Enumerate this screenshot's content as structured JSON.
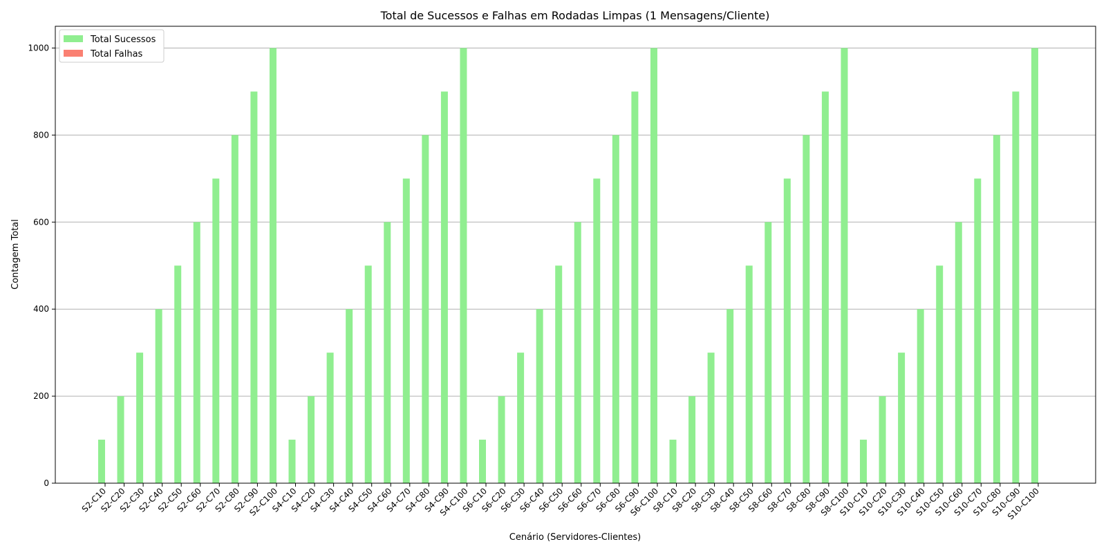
{
  "chart_data": {
    "type": "bar",
    "title": "Total de Sucessos e Falhas em Rodadas Limpas (1 Mensagens/Cliente)",
    "xlabel": "Cenário (Servidores-Clientes)",
    "ylabel": "Contagem Total",
    "ylim": [
      0,
      1050
    ],
    "yticks": [
      0,
      200,
      400,
      600,
      800,
      1000
    ],
    "grid": "y",
    "legend_position": "top-left",
    "categories": [
      "S2-C10",
      "S2-C20",
      "S2-C30",
      "S2-C40",
      "S2-C50",
      "S2-C60",
      "S2-C70",
      "S2-C80",
      "S2-C90",
      "S2-C100",
      "S4-C10",
      "S4-C20",
      "S4-C30",
      "S4-C40",
      "S4-C50",
      "S4-C60",
      "S4-C70",
      "S4-C80",
      "S4-C90",
      "S4-C100",
      "S6-C10",
      "S6-C20",
      "S6-C30",
      "S6-C40",
      "S6-C50",
      "S6-C60",
      "S6-C70",
      "S6-C80",
      "S6-C90",
      "S6-C100",
      "S8-C10",
      "S8-C20",
      "S8-C30",
      "S8-C40",
      "S8-C50",
      "S8-C60",
      "S8-C70",
      "S8-C80",
      "S8-C90",
      "S8-C100",
      "S10-C10",
      "S10-C20",
      "S10-C30",
      "S10-C40",
      "S10-C50",
      "S10-C60",
      "S10-C70",
      "S10-C80",
      "S10-C90",
      "S10-C100"
    ],
    "series": [
      {
        "name": "Total Sucessos",
        "color": "#90ee90",
        "values": [
          100,
          200,
          300,
          400,
          500,
          600,
          700,
          800,
          900,
          1000,
          100,
          200,
          300,
          400,
          500,
          600,
          700,
          800,
          900,
          1000,
          100,
          200,
          300,
          400,
          500,
          600,
          700,
          800,
          900,
          1000,
          100,
          200,
          300,
          400,
          500,
          600,
          700,
          800,
          900,
          1000,
          100,
          200,
          300,
          400,
          500,
          600,
          700,
          800,
          900,
          1000
        ]
      },
      {
        "name": "Total Falhas",
        "color": "#fa8072",
        "values": [
          0,
          0,
          0,
          0,
          0,
          0,
          0,
          0,
          0,
          0,
          0,
          0,
          0,
          0,
          0,
          0,
          0,
          0,
          0,
          0,
          0,
          0,
          0,
          0,
          0,
          0,
          0,
          0,
          0,
          0,
          0,
          0,
          0,
          0,
          0,
          0,
          0,
          0,
          0,
          0,
          0,
          0,
          0,
          0,
          0,
          0,
          0,
          0,
          0,
          0
        ]
      }
    ]
  }
}
